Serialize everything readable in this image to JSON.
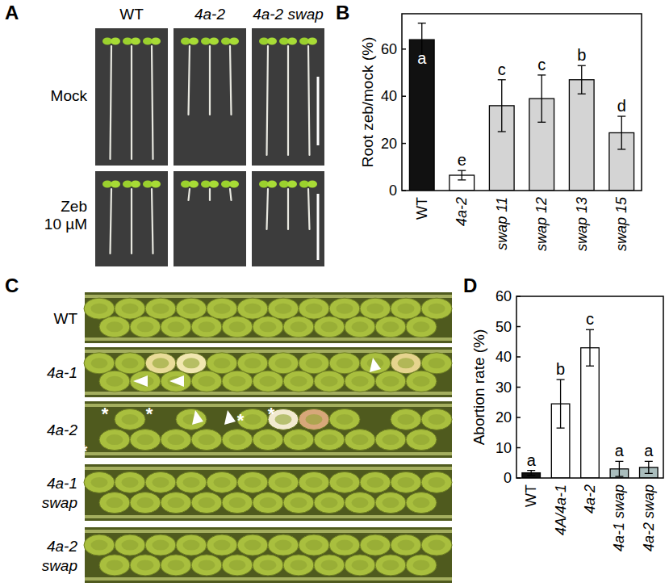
{
  "figure_panels": {
    "labels": [
      "A",
      "B",
      "C",
      "D"
    ]
  },
  "panel_a": {
    "columns": [
      "WT",
      "4a-2",
      "4a-2 swap"
    ],
    "rows": [
      [
        "Mock"
      ],
      [
        "Zeb",
        "10 µM"
      ]
    ]
  },
  "panel_c": {
    "rows": [
      [
        "WT"
      ],
      [
        "4a-1"
      ],
      [
        "4a-2"
      ],
      [
        "4a-1",
        "swap"
      ],
      [
        "4a-2",
        "swap"
      ]
    ],
    "asterisk": "*"
  },
  "chart_data": [
    {
      "type": "bar",
      "y_label": "Root zeb/mock (%)",
      "categories": [
        "WT",
        "4a-2",
        "swap 11",
        "swap 12",
        "swap 13",
        "swap 15"
      ],
      "values": [
        64,
        6.5,
        36,
        39,
        47,
        24.5
      ],
      "errors": [
        7,
        2,
        11,
        10,
        6,
        7
      ],
      "letters": [
        "a",
        "e",
        "c",
        "c",
        "b",
        "d"
      ],
      "colors": [
        "#111111",
        "#ffffff",
        "#d4d4d4",
        "#d4d4d4",
        "#d4d4d4",
        "#d4d4d4"
      ],
      "ylim": [
        0,
        75
      ],
      "yticks": [
        0,
        20,
        40,
        60
      ]
    },
    {
      "type": "bar",
      "y_label": "Abortion rate (%)",
      "categories": [
        "WT",
        "4A/4a-1",
        "4a-2",
        "4a-1 swap",
        "4a-2 swap"
      ],
      "values": [
        1.7,
        24.5,
        43,
        3,
        3.5
      ],
      "errors": [
        0.8,
        8,
        6,
        2.5,
        2
      ],
      "letters": [
        "a",
        "b",
        "c",
        "a",
        "a"
      ],
      "colors": [
        "#111111",
        "#ffffff",
        "#ffffff",
        "#a9bdbd",
        "#a9bdbd"
      ],
      "ylim": [
        0,
        60
      ],
      "yticks": [
        0,
        10,
        20,
        30,
        40,
        50,
        60
      ]
    }
  ]
}
